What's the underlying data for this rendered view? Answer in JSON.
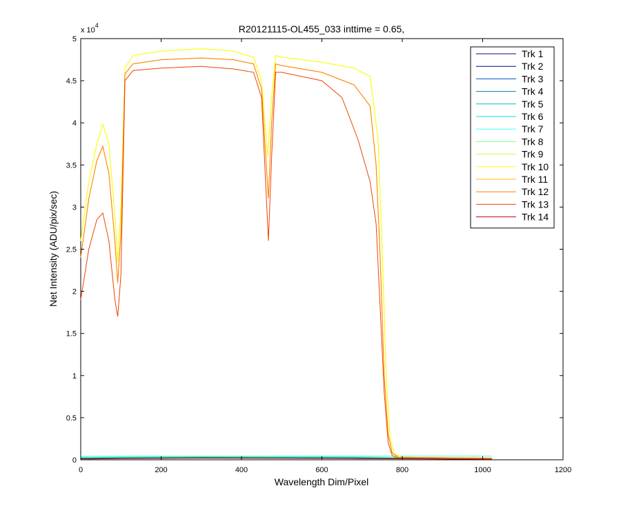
{
  "chart_data": {
    "type": "line",
    "title": "R20121115-OL455_033 inttime = 0.65,",
    "xlabel": "Wavelength Dim/Pixel",
    "ylabel": "Net Intensity (ADU/pix/sec)",
    "xlim": [
      0,
      1200
    ],
    "ylim": [
      0,
      50000
    ],
    "xticks": [
      0,
      200,
      400,
      600,
      800,
      1000,
      1200
    ],
    "xtick_labels": [
      "0",
      "200",
      "400",
      "600",
      "800",
      "1000",
      "1200"
    ],
    "yticks": [
      0,
      5000,
      10000,
      15000,
      20000,
      25000,
      30000,
      35000,
      40000,
      45000,
      50000
    ],
    "ytick_labels": [
      "0",
      "0.5",
      "1",
      "1.5",
      "2",
      "2.5",
      "3",
      "3.5",
      "4",
      "4.5",
      "5"
    ],
    "y_exponent_label": "x 10",
    "y_exponent": "4",
    "grid": false,
    "legend_position": "top-right",
    "series": [
      {
        "name": "Trk 1",
        "color": "#00008F",
        "x": [
          0,
          100,
          300,
          500,
          700,
          900,
          1023
        ],
        "y": [
          100,
          150,
          200,
          180,
          150,
          100,
          50
        ]
      },
      {
        "name": "Trk 2",
        "color": "#00007F",
        "x": [
          0,
          100,
          300,
          500,
          700,
          900,
          1023
        ],
        "y": [
          150,
          200,
          250,
          230,
          200,
          120,
          60
        ]
      },
      {
        "name": "Trk 3",
        "color": "#004FBF",
        "x": [
          0,
          100,
          300,
          500,
          700,
          900,
          1023
        ],
        "y": [
          200,
          250,
          300,
          280,
          250,
          150,
          80
        ]
      },
      {
        "name": "Trk 4",
        "color": "#0080A0",
        "x": [
          0,
          100,
          300,
          500,
          700,
          900,
          1023
        ],
        "y": [
          180,
          220,
          260,
          250,
          220,
          130,
          70
        ]
      },
      {
        "name": "Trk 5",
        "color": "#00BFCF",
        "x": [
          0,
          100,
          300,
          500,
          700,
          900,
          1023
        ],
        "y": [
          220,
          260,
          300,
          290,
          260,
          160,
          90
        ]
      },
      {
        "name": "Trk 6",
        "color": "#10DFDF",
        "x": [
          0,
          100,
          300,
          500,
          700,
          900,
          1023
        ],
        "y": [
          250,
          300,
          350,
          340,
          310,
          180,
          100
        ]
      },
      {
        "name": "Trk 7",
        "color": "#40FFFF",
        "x": [
          0,
          100,
          300,
          500,
          700,
          900,
          1023
        ],
        "y": [
          420,
          430,
          440,
          440,
          440,
          440,
          440
        ]
      },
      {
        "name": "Trk 8",
        "color": "#80FF80",
        "x": [
          0,
          100,
          300,
          500,
          700,
          900,
          1023
        ],
        "y": [
          300,
          350,
          400,
          380,
          350,
          200,
          120
        ]
      },
      {
        "name": "Trk 9",
        "color": "#BFFF40",
        "x": [
          0,
          20,
          40,
          55,
          70,
          85,
          92,
          100,
          110,
          130,
          200,
          300,
          380,
          430,
          450,
          465,
          475,
          485,
          500,
          600,
          680,
          720,
          740,
          750,
          760,
          770,
          780,
          800,
          900,
          1023
        ],
        "y": [
          26000,
          33000,
          37500,
          39800,
          37500,
          29000,
          23500,
          30000,
          46500,
          48000,
          48500,
          48800,
          48500,
          47800,
          45000,
          36000,
          43000,
          48000,
          47800,
          47200,
          46500,
          45500,
          38000,
          25000,
          10000,
          2500,
          700,
          300,
          250,
          200
        ]
      },
      {
        "name": "Trk 10",
        "color": "#FFFF00",
        "x": [
          0,
          20,
          40,
          55,
          70,
          85,
          92,
          100,
          110,
          130,
          200,
          300,
          380,
          430,
          450,
          465,
          475,
          485,
          500,
          600,
          680,
          720,
          740,
          750,
          760,
          770,
          780,
          800,
          900,
          1023
        ],
        "y": [
          26000,
          33000,
          37500,
          39800,
          37500,
          29000,
          23500,
          30000,
          46500,
          48000,
          48500,
          48800,
          48500,
          47800,
          45000,
          36000,
          43000,
          48000,
          47800,
          47200,
          46500,
          45500,
          38000,
          25000,
          10000,
          2500,
          700,
          300,
          250,
          200
        ]
      },
      {
        "name": "Trk 11",
        "color": "#FFBF00",
        "x": [
          0,
          20,
          40,
          55,
          70,
          85,
          92,
          100,
          110,
          130,
          200,
          300,
          380,
          430,
          450,
          467,
          475,
          485,
          500,
          600,
          680,
          720,
          735,
          745,
          755,
          765,
          775,
          790,
          900,
          1023
        ],
        "y": [
          24000,
          31000,
          35500,
          37200,
          34000,
          26000,
          21000,
          27000,
          45800,
          47000,
          47500,
          47700,
          47500,
          47000,
          44000,
          31000,
          40000,
          47000,
          46800,
          46000,
          44500,
          42000,
          35000,
          24000,
          10000,
          3000,
          800,
          300,
          250,
          200
        ]
      },
      {
        "name": "Trk 12",
        "color": "#FF8000",
        "x": [
          0,
          20,
          40,
          55,
          70,
          85,
          92,
          100,
          110,
          130,
          200,
          300,
          380,
          430,
          450,
          467,
          475,
          485,
          500,
          600,
          680,
          720,
          735,
          745,
          755,
          765,
          775,
          790,
          900,
          1023
        ],
        "y": [
          24000,
          31000,
          35500,
          37200,
          34000,
          26000,
          21000,
          27000,
          45800,
          47000,
          47500,
          47700,
          47500,
          47000,
          44000,
          31000,
          40000,
          47000,
          46800,
          46000,
          44500,
          42000,
          35000,
          24000,
          10000,
          3000,
          800,
          300,
          250,
          200
        ]
      },
      {
        "name": "Trk 13",
        "color": "#EF4000",
        "x": [
          0,
          20,
          40,
          55,
          70,
          85,
          92,
          100,
          110,
          130,
          200,
          300,
          380,
          430,
          450,
          467,
          475,
          485,
          500,
          600,
          650,
          690,
          720,
          735,
          745,
          755,
          765,
          775,
          790,
          900,
          1023
        ],
        "y": [
          19000,
          25000,
          28500,
          29300,
          26000,
          19000,
          17000,
          22000,
          45000,
          46200,
          46500,
          46700,
          46400,
          46000,
          43000,
          26000,
          36000,
          46000,
          46000,
          45000,
          43000,
          38000,
          33000,
          28000,
          18000,
          8000,
          2000,
          500,
          200,
          150,
          100
        ]
      },
      {
        "name": "Trk 14",
        "color": "#BF0000",
        "x": [
          0,
          100,
          300,
          500,
          700,
          900,
          1023
        ],
        "y": [
          120,
          160,
          220,
          200,
          170,
          110,
          60
        ]
      }
    ]
  }
}
